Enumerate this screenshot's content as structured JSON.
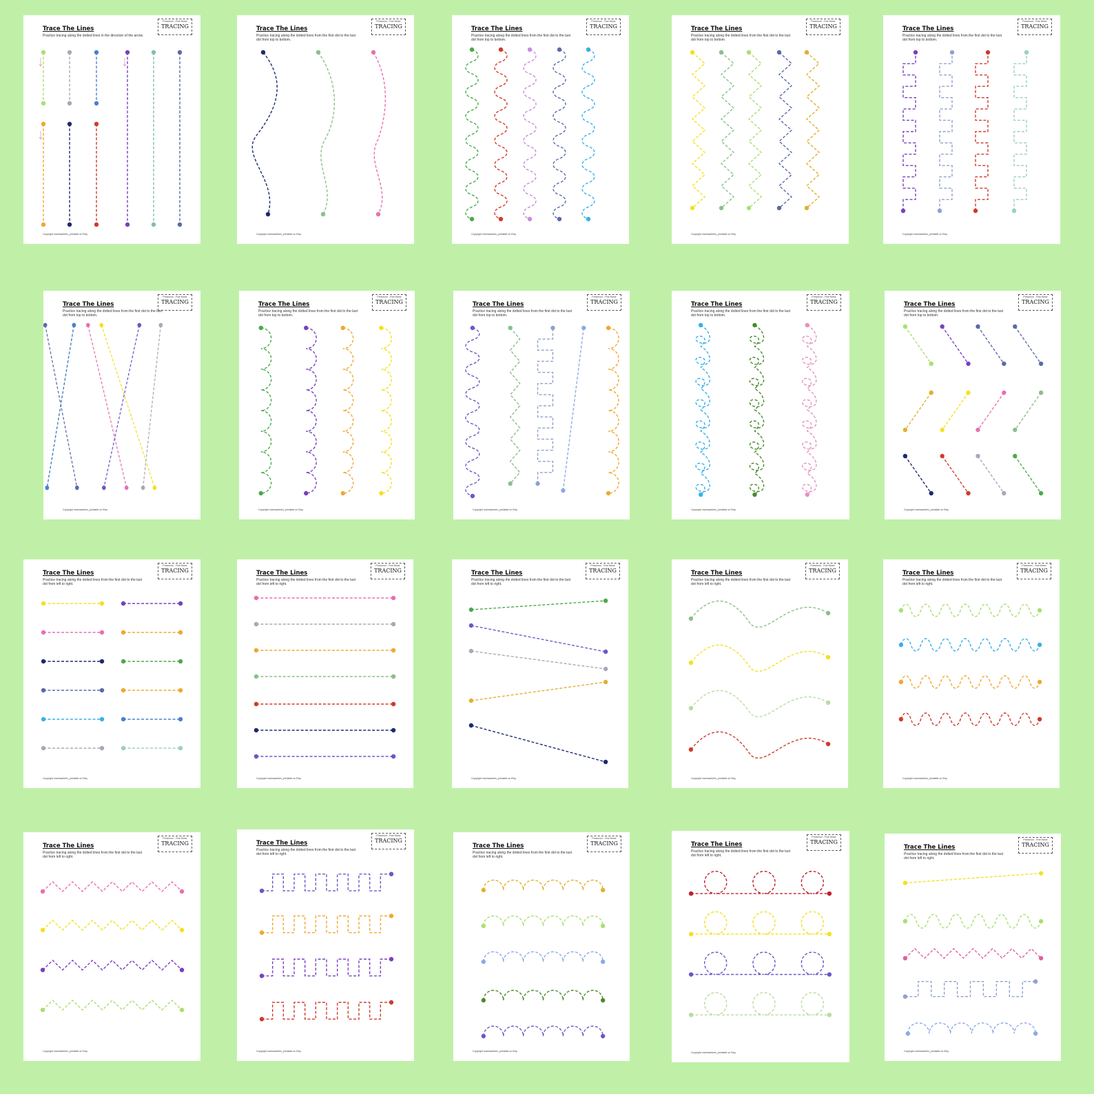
{
  "sheet_common": {
    "title": "Trace The Lines",
    "logo_small": "Preschool - Fine Motor",
    "logo_main": "TRACING",
    "copyright": "Copyright marinaceteris_printable on Etsy"
  },
  "colors": {
    "background": "#c0f0a8",
    "lime": "#a8e070",
    "gray": "#a8a8b8",
    "blue": "#4a7fd4",
    "orange": "#f0a830",
    "navy": "#1c2a6e",
    "purple": "#7a3fc0",
    "teal": "#7cc0b0",
    "slate": "#5a6aa8",
    "red": "#d03a2c",
    "green": "#4aaa4a",
    "pink": "#e870b0",
    "lilac": "#c88ae0",
    "sky": "#38b0e8",
    "yellow": "#f5e020",
    "sage": "#8ac08a",
    "violet": "#6a58c8",
    "olive": "#4a8a2a",
    "gold": "#e0b030",
    "lightgreen": "#b8dca0",
    "periwinkle": "#8aaae8",
    "dullblue": "#90a0d0",
    "lightteal": "#9ad0c0",
    "rose": "#e890c0",
    "fuchsia": "#e060a0",
    "deepred": "#c02030"
  },
  "sheets": [
    {
      "instructions": "Practice tracing along the dotted lines in the direction of the arrow.",
      "pattern": "vertical straight lines with arrows"
    },
    {
      "instructions": "Practice tracing along the dotted lines from the first dot to the last dot from top to bottom.",
      "pattern": "vertical gentle curves"
    },
    {
      "instructions": "Practice tracing along the dotted lines from the first dot to the last dot from top to bottom.",
      "pattern": "vertical waves"
    },
    {
      "instructions": "Practice tracing along the dotted lines from the first dot to the last dot from top to bottom.",
      "pattern": "vertical zigzags"
    },
    {
      "instructions": "Practice tracing along the dotted lines from the first dot to the last dot from top to bottom.",
      "pattern": "vertical square waves"
    },
    {
      "instructions": "Practice tracing along the dotted lines from the first dot to the last dot from top to bottom.",
      "pattern": "crossing diagonal lines"
    },
    {
      "instructions": "Practice tracing along the dotted lines from the first dot to the last dot from top to bottom.",
      "pattern": "vertical scallops"
    },
    {
      "instructions": "Practice tracing along the dotted lines from the first dot to the last dot from top to bottom.",
      "pattern": "mixed vertical lines"
    },
    {
      "instructions": "Practice tracing along the dotted lines from the first dot to the last dot from top to bottom.",
      "pattern": "vertical loops"
    },
    {
      "instructions": "Practice tracing along the dotted lines from the first dot to the last dot from top to bottom.",
      "pattern": "short diagonals"
    },
    {
      "instructions": "Practice tracing along the dotted lines from the first dot to the last dot from left to right.",
      "pattern": "short horizontal lines"
    },
    {
      "instructions": "Practice tracing along the dotted lines from the first dot to the last dot from left to right.",
      "pattern": "long horizontal lines"
    },
    {
      "instructions": "Practice tracing along the dotted lines from the first dot to the last dot from left to right.",
      "pattern": "slanted lines"
    },
    {
      "instructions": "Practice tracing along the dotted lines from the first dot to the last dot from left to right.",
      "pattern": "horizontal gentle waves"
    },
    {
      "instructions": "Practice tracing along the dotted lines from the first dot to the last dot from left to right.",
      "pattern": "horizontal waves"
    },
    {
      "instructions": "Practice tracing along the dotted lines from the first dot to the last dot from left to right.",
      "pattern": "horizontal zigzags"
    },
    {
      "instructions": "Practice tracing along the dotted lines from the first dot to the last dot from left to right.",
      "pattern": "horizontal square waves"
    },
    {
      "instructions": "Practice tracing along the dotted lines from the first dot to the last dot from left to right.",
      "pattern": "horizontal bumps"
    },
    {
      "instructions": "Practice tracing along the dotted lines from the first dot to the last dot from left to right.",
      "pattern": "lines with circles"
    },
    {
      "instructions": "Practice tracing along the dotted lines from the first dot to the last dot from left to right.",
      "pattern": "mixed horizontal lines"
    }
  ]
}
